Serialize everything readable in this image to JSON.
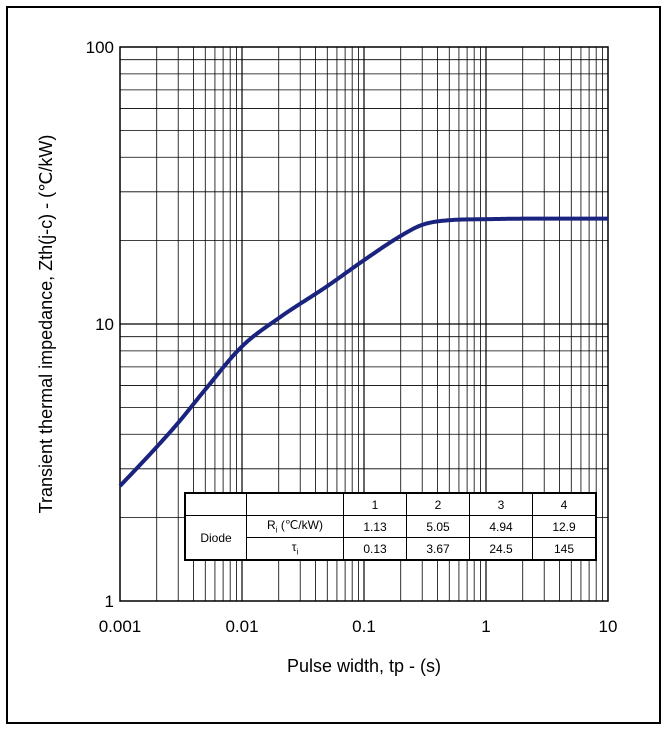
{
  "chart_data": {
    "type": "line",
    "xscale": "log",
    "yscale": "log",
    "xlim": [
      0.001,
      10
    ],
    "ylim": [
      1,
      100
    ],
    "xlabel": "Pulse width, tp - (s)",
    "ylabel": "Transient thermal impedance, Zth(j-c) - (℃/kW)",
    "xticks": [
      "0.001",
      "0.01",
      "0.1",
      "1",
      "10"
    ],
    "yticks": [
      "1",
      "10",
      "100"
    ],
    "grid": true,
    "series": [
      {
        "color": "#1a237e",
        "x": [
          0.001,
          0.002,
          0.003,
          0.005,
          0.01,
          0.02,
          0.05,
          0.1,
          0.2,
          0.3,
          0.5,
          1,
          2,
          5,
          10
        ],
        "y": [
          2.6,
          3.6,
          4.4,
          5.8,
          8.3,
          10.5,
          13.7,
          17.0,
          20.8,
          22.8,
          23.7,
          23.9,
          24.0,
          24.0,
          24.0
        ]
      }
    ]
  },
  "table": {
    "headers": [
      "1",
      "2",
      "3",
      "4"
    ],
    "group_label": "Diode",
    "rows": [
      {
        "label_main": "R",
        "label_sub": "i",
        "label_rest": " (℃/kW)",
        "values": [
          "1.13",
          "5.05",
          "4.94",
          "12.9"
        ]
      },
      {
        "label_main": "τ",
        "label_sub": "i",
        "label_rest": "",
        "values": [
          "0.13",
          "3.67",
          "24.5",
          "145"
        ]
      }
    ]
  }
}
